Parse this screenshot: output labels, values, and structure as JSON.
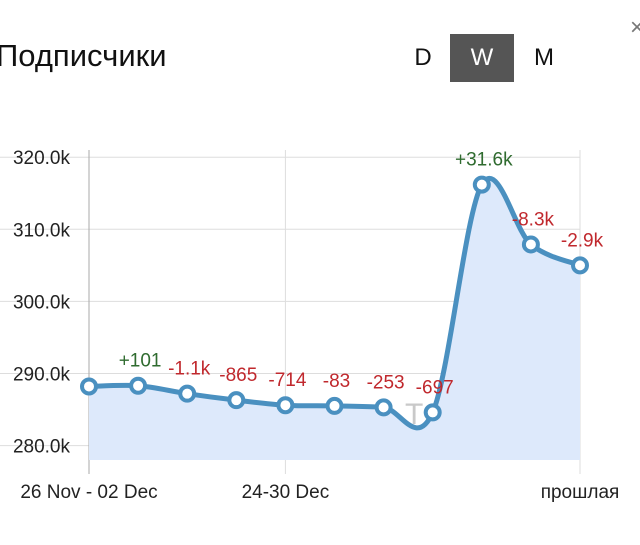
{
  "header": {
    "title": "Подписчики",
    "close_glyph": "×",
    "periods": [
      "D",
      "W",
      "M"
    ],
    "active_period": "W"
  },
  "watermark": "TGStat.ru",
  "colors": {
    "line": "#4a90c0",
    "fill": "#dde9fb",
    "positive": "#2f6b2f",
    "negative": "#c0282d",
    "grid": "#dddddd",
    "active_period_bg": "#555555"
  },
  "chart_data": {
    "type": "area",
    "title": "Подписчики",
    "y_tick_labels": [
      "280.0k",
      "290.0k",
      "300.0k",
      "310.0k",
      "320.0k"
    ],
    "y_ticks": [
      280000,
      290000,
      300000,
      310000,
      320000
    ],
    "x_tick_labels": [
      "26 Nov - 02 Dec",
      "24-30 Dec",
      "прошлая"
    ],
    "x_tick_index": [
      0,
      4,
      10
    ],
    "points": [
      {
        "value": 288200,
        "label": ""
      },
      {
        "value": 288300,
        "label": "+101"
      },
      {
        "value": 287200,
        "label": "-1.1k"
      },
      {
        "value": 286300,
        "label": "-865"
      },
      {
        "value": 285600,
        "label": "-714"
      },
      {
        "value": 285500,
        "label": "-83"
      },
      {
        "value": 285300,
        "label": "-253"
      },
      {
        "value": 284600,
        "label": "-697"
      },
      {
        "value": 316200,
        "label": "+31.6k"
      },
      {
        "value": 307900,
        "label": "-8.3k"
      },
      {
        "value": 305000,
        "label": "-2.9k"
      }
    ],
    "grid": true,
    "legend": "none"
  }
}
